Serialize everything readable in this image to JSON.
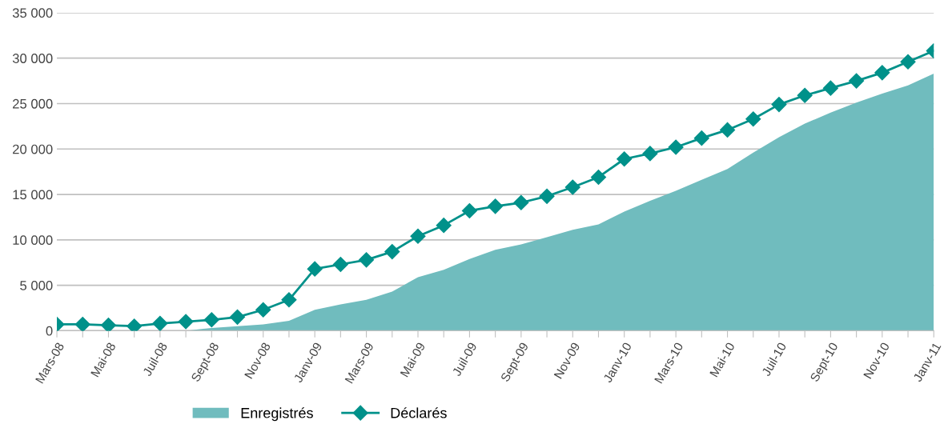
{
  "chart_data": {
    "type": "line",
    "categories": [
      "Mars-08",
      null,
      "Mai-08",
      null,
      "Juil-08",
      null,
      "Sept-08",
      null,
      "Nov-08",
      null,
      "Janv-09",
      null,
      "Mars-09",
      null,
      "Mai-09",
      null,
      "Juil-09",
      null,
      "Sept-09",
      null,
      "Nov-09",
      null,
      "Janv-10",
      null,
      "Mars-10",
      null,
      "Mai-10",
      null,
      "Juil-10",
      null,
      "Sept-10",
      null,
      "Nov-10",
      null,
      "Janv-11"
    ],
    "series": [
      {
        "name": "Enregistrés",
        "type": "area",
        "color": "#70bcbe",
        "values": [
          null,
          null,
          null,
          null,
          null,
          0,
          300,
          500,
          700,
          1100,
          2300,
          2900,
          3400,
          4300,
          5900,
          6700,
          7900,
          8900,
          9500,
          10300,
          11100,
          11700,
          13100,
          14300,
          15400,
          16600,
          17800,
          19600,
          21300,
          22800,
          24000,
          25100,
          26100,
          27000,
          28300
        ]
      },
      {
        "name": "Déclarés",
        "color": "#00918a",
        "marker": "diamond",
        "values": [
          700,
          700,
          600,
          500,
          800,
          1000,
          1200,
          1500,
          2300,
          3400,
          6800,
          7300,
          7800,
          8700,
          10400,
          11600,
          13200,
          13700,
          14100,
          14800,
          15800,
          16900,
          18900,
          19500,
          20200,
          21200,
          22100,
          23300,
          24900,
          25900,
          26700,
          27500,
          28400,
          29600,
          30800
        ]
      }
    ],
    "ylim": [
      0,
      35000
    ],
    "yticks": [
      0,
      {
        "value": 5000,
        "label": "5 000"
      },
      {
        "value": 10000,
        "label": "10 000"
      },
      {
        "value": 15000,
        "label": "15 000"
      },
      {
        "value": 20000,
        "label": "20 000"
      },
      {
        "value": 25000,
        "label": "25 000"
      },
      {
        "value": 30000,
        "label": "30 000"
      },
      {
        "value": 35000,
        "label": "35 000"
      }
    ],
    "grid": "y",
    "legend": "bottom"
  }
}
